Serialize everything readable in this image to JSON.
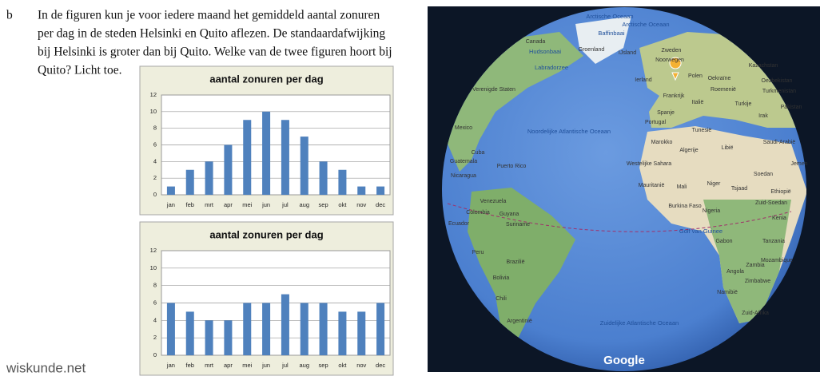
{
  "question": {
    "letter": "b",
    "lines": [
      "In de figuren kun je voor iedere maand het gemiddeld aantal zonuren",
      "per dag in de steden Helsinki en Quito aflezen. De standaardafwijking",
      "bij Helsinki is groter dan bij Quito. Welke van de twee figuren hoort bij",
      "Quito? Licht toe."
    ]
  },
  "chart_data": [
    {
      "type": "bar",
      "title": "aantal zonuren per dag",
      "categories": [
        "jan",
        "feb",
        "mrt",
        "apr",
        "mei",
        "jun",
        "jul",
        "aug",
        "sep",
        "okt",
        "nov",
        "dec"
      ],
      "values": [
        1,
        3,
        4,
        6,
        9,
        10,
        9,
        7,
        4,
        3,
        1,
        1
      ],
      "color": "#4f81bd",
      "ylim": [
        0,
        12
      ],
      "yticks": [
        0,
        2,
        4,
        6,
        8,
        10,
        12
      ],
      "grid": true
    },
    {
      "type": "bar",
      "title": "aantal zonuren per dag",
      "categories": [
        "jan",
        "feb",
        "mrt",
        "apr",
        "mei",
        "jun",
        "jul",
        "aug",
        "sep",
        "okt",
        "nov",
        "dec"
      ],
      "values": [
        6,
        5,
        4,
        4,
        6,
        6,
        7,
        6,
        6,
        5,
        5,
        6
      ],
      "color": "#4f81bd",
      "ylim": [
        0,
        12
      ],
      "yticks": [
        0,
        2,
        4,
        6,
        8,
        10,
        12
      ],
      "grid": true
    }
  ],
  "map": {
    "labels": [
      "Arctische Oceaan",
      "Arctische Oceaan",
      "Baffinbaai",
      "Canada",
      "Hudsonbaai",
      "Groenland",
      "IJsland",
      "Labradorzee",
      "Zweden",
      "Noorwegen",
      "Kazachstan",
      "Ierland",
      "Polen",
      "Oekraïne",
      "Oezbekistan",
      "Frankrijk",
      "Roemenië",
      "Turkmenistan",
      "Italië",
      "Turkije",
      "Pakistan",
      "Spanje",
      "Irak",
      "Portugal",
      "Tunesië",
      "Verenigde Staten",
      "Noordelijke Atlantische Oceaan",
      "Mexico",
      "Cuba",
      "Guatemala",
      "Puerto Rico",
      "Nicaragua",
      "Marokko",
      "Algerije",
      "Libië",
      "Saudi-Arabië",
      "Westelijke Sahara",
      "Mauritanië",
      "Mali",
      "Niger",
      "Tsjaad",
      "Soedan",
      "Jemen",
      "Ethiopië",
      "Burkina Faso",
      "Nigeria",
      "Zuid-Soedan",
      "Kenia",
      "Venezuela",
      "Colombia",
      "Guyana",
      "Suriname",
      "Ecuador",
      "Golf van Guinee",
      "Gabon",
      "Tanzania",
      "Peru",
      "Brazilië",
      "Bolivia",
      "Chili",
      "Angola",
      "Zambia",
      "Mozambique",
      "Zimbabwe",
      "Namibië",
      "Zuid-Afrika",
      "Zuidelijke Atlantische Oceaan",
      "Argentinië"
    ],
    "logo": "Google"
  },
  "footer": "wiskunde.net"
}
